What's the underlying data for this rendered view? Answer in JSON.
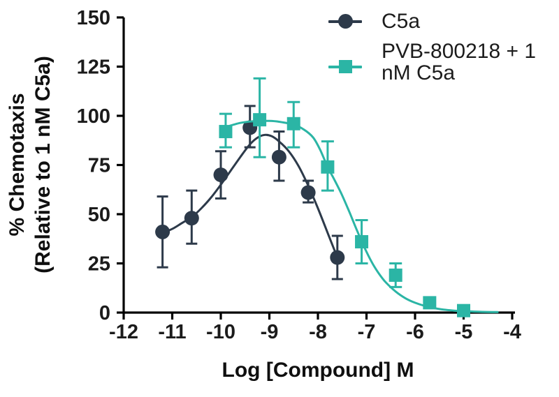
{
  "figure": {
    "y_axis_title_line1": "% Chemotaxis",
    "y_axis_title_line2": "(Relative to 1 nM C5a)",
    "x_axis_title": "Log [Compound] M"
  },
  "legend": {
    "items": [
      {
        "label": "C5a",
        "label_line1": "C5a",
        "label_line2": "",
        "marker": "circle-marker-icon",
        "color": "#2d3a4a"
      },
      {
        "label": "PVB-800218 + 1 nM C5a",
        "label_line1": "PVB-800218 + 1",
        "label_line2": "nM C5a",
        "marker": "square-marker-icon",
        "color": "#2bb5a5"
      }
    ]
  },
  "colors": {
    "c5a_series": "#2d3a4a",
    "pvb_series": "#2bb5a5",
    "axis": "#000000",
    "tick_label": "#1b1b1b",
    "background": "#ffffff"
  },
  "chart_data": {
    "type": "scatter",
    "title": "",
    "xlabel": "Log [Compound] M",
    "ylabel": "% Chemotaxis (Relative to 1 nM C5a)",
    "xlim": [
      -12,
      -4
    ],
    "ylim": [
      0,
      150
    ],
    "x_ticks": [
      -12,
      -11,
      -10,
      -9,
      -8,
      -7,
      -6,
      -5,
      -4
    ],
    "y_ticks": [
      0,
      25,
      50,
      75,
      100,
      125,
      150
    ],
    "grid": false,
    "legend_position": "top-right",
    "series": [
      {
        "name": "C5a",
        "marker": "circle",
        "color": "#2d3a4a",
        "points": [
          {
            "x": -11.2,
            "y": 41,
            "up": 18,
            "dn": 18
          },
          {
            "x": -10.6,
            "y": 48,
            "up": 14,
            "dn": 13
          },
          {
            "x": -10.0,
            "y": 70,
            "up": 12,
            "dn": 12
          },
          {
            "x": -9.4,
            "y": 94,
            "up": 11,
            "dn": 10
          },
          {
            "x": -8.8,
            "y": 79,
            "up": 13,
            "dn": 12
          },
          {
            "x": -8.2,
            "y": 61,
            "up": 6,
            "dn": 5
          },
          {
            "x": -7.6,
            "y": 28,
            "up": 11,
            "dn": 11
          }
        ],
        "fit_curve": [
          [
            -11.2,
            40.5
          ],
          [
            -11.0,
            42.5
          ],
          [
            -10.8,
            45.5
          ],
          [
            -10.6,
            48.5
          ],
          [
            -10.4,
            53
          ],
          [
            -10.2,
            58.5
          ],
          [
            -10.0,
            65
          ],
          [
            -9.8,
            72
          ],
          [
            -9.6,
            79
          ],
          [
            -9.4,
            85.5
          ],
          [
            -9.25,
            88.8
          ],
          [
            -9.1,
            90.3
          ],
          [
            -8.95,
            89.6
          ],
          [
            -8.8,
            87
          ],
          [
            -8.6,
            82
          ],
          [
            -8.4,
            74.5
          ],
          [
            -8.2,
            64.5
          ],
          [
            -8.0,
            53
          ],
          [
            -7.8,
            40.5
          ],
          [
            -7.6,
            28
          ]
        ]
      },
      {
        "name": "PVB-800218 + 1 nM C5a",
        "marker": "square",
        "color": "#2bb5a5",
        "points": [
          {
            "x": -9.9,
            "y": 92,
            "up": 9,
            "dn": 8
          },
          {
            "x": -9.2,
            "y": 98,
            "up": 21,
            "dn": 19
          },
          {
            "x": -8.5,
            "y": 96,
            "up": 11,
            "dn": 12
          },
          {
            "x": -7.8,
            "y": 74,
            "up": 13,
            "dn": 12
          },
          {
            "x": -7.1,
            "y": 36,
            "up": 11,
            "dn": 11
          },
          {
            "x": -6.4,
            "y": 19,
            "up": 6,
            "dn": 6
          },
          {
            "x": -5.7,
            "y": 5,
            "up": 0,
            "dn": 0
          },
          {
            "x": -5.0,
            "y": 1,
            "up": 0,
            "dn": 0
          }
        ],
        "fit_curve": [
          [
            -9.9,
            94.3
          ],
          [
            -9.6,
            96.4
          ],
          [
            -9.3,
            97.3
          ],
          [
            -9.0,
            97.4
          ],
          [
            -8.8,
            97
          ],
          [
            -8.5,
            95.5
          ],
          [
            -8.3,
            93.2
          ],
          [
            -8.1,
            89
          ],
          [
            -7.95,
            82.5
          ],
          [
            -7.8,
            74
          ],
          [
            -7.65,
            67
          ],
          [
            -7.5,
            59.5
          ],
          [
            -7.35,
            51
          ],
          [
            -7.2,
            42
          ],
          [
            -7.05,
            33.5
          ],
          [
            -6.9,
            26
          ],
          [
            -6.75,
            20
          ],
          [
            -6.6,
            15.3
          ],
          [
            -6.4,
            10.7
          ],
          [
            -6.2,
            7.3
          ],
          [
            -6.0,
            5
          ],
          [
            -5.8,
            3.4
          ],
          [
            -5.5,
            1.8
          ],
          [
            -5.2,
            1.0
          ],
          [
            -4.9,
            0.6
          ],
          [
            -4.6,
            0.35
          ],
          [
            -4.3,
            0.25
          ]
        ]
      }
    ]
  }
}
